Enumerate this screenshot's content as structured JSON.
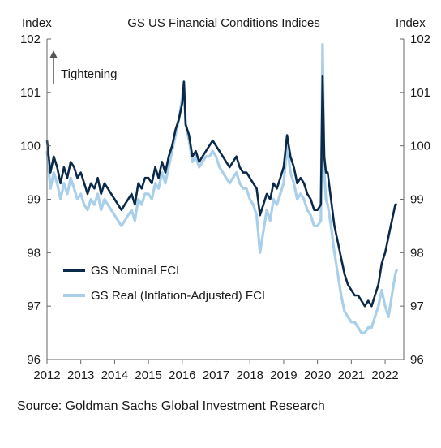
{
  "chart_data": {
    "type": "line",
    "title": "GS US Financial Conditions Indices",
    "ylabel_left": "Index",
    "ylabel_right": "Index",
    "xlim": [
      2012,
      2022.55
    ],
    "ylim": [
      96,
      102
    ],
    "y_ticks": [
      96,
      97,
      98,
      99,
      100,
      101,
      102
    ],
    "x_ticks": [
      2012,
      2013,
      2014,
      2015,
      2016,
      2017,
      2018,
      2019,
      2020,
      2021,
      2022
    ],
    "grid": false,
    "legend_position": "lower-left",
    "annotation": "Tightening",
    "source": "Source: Goldman Sachs Global Investment Research",
    "series": [
      {
        "name": "GS Nominal FCI",
        "color": "#0b2a4a",
        "x": [
          2012.0,
          2012.1,
          2012.2,
          2012.3,
          2012.4,
          2012.5,
          2012.6,
          2012.7,
          2012.8,
          2012.9,
          2013.0,
          2013.1,
          2013.2,
          2013.3,
          2013.4,
          2013.5,
          2013.6,
          2013.7,
          2013.8,
          2013.9,
          2014.0,
          2014.1,
          2014.2,
          2014.3,
          2014.4,
          2014.5,
          2014.6,
          2014.7,
          2014.8,
          2014.9,
          2015.0,
          2015.1,
          2015.2,
          2015.3,
          2015.4,
          2015.5,
          2015.6,
          2015.7,
          2015.8,
          2015.9,
          2016.0,
          2016.05,
          2016.1,
          2016.2,
          2016.3,
          2016.4,
          2016.5,
          2016.6,
          2016.7,
          2016.8,
          2016.9,
          2017.0,
          2017.1,
          2017.2,
          2017.3,
          2017.4,
          2017.5,
          2017.6,
          2017.7,
          2017.8,
          2017.9,
          2018.0,
          2018.1,
          2018.2,
          2018.3,
          2018.4,
          2018.5,
          2018.6,
          2018.7,
          2018.8,
          2018.9,
          2019.0,
          2019.1,
          2019.2,
          2019.3,
          2019.4,
          2019.5,
          2019.6,
          2019.7,
          2019.8,
          2019.9,
          2020.0,
          2020.1,
          2020.15,
          2020.2,
          2020.25,
          2020.3,
          2020.4,
          2020.5,
          2020.6,
          2020.7,
          2020.8,
          2020.9,
          2021.0,
          2021.1,
          2021.2,
          2021.3,
          2021.4,
          2021.5,
          2021.6,
          2021.7,
          2021.8,
          2021.9,
          2022.0,
          2022.1,
          2022.2,
          2022.3,
          2022.35
        ],
        "values": [
          100.1,
          99.5,
          99.8,
          99.6,
          99.3,
          99.6,
          99.4,
          99.7,
          99.6,
          99.4,
          99.5,
          99.3,
          99.1,
          99.3,
          99.2,
          99.4,
          99.1,
          99.3,
          99.2,
          99.1,
          99.0,
          98.9,
          98.8,
          98.9,
          99.0,
          99.1,
          98.9,
          99.3,
          99.2,
          99.4,
          99.4,
          99.3,
          99.6,
          99.4,
          99.7,
          99.5,
          99.8,
          100.0,
          100.3,
          100.5,
          100.8,
          101.2,
          100.4,
          100.2,
          99.8,
          99.9,
          99.7,
          99.8,
          99.9,
          100.0,
          100.1,
          100.0,
          99.9,
          99.8,
          99.7,
          99.6,
          99.7,
          99.8,
          99.6,
          99.5,
          99.5,
          99.4,
          99.3,
          99.2,
          98.7,
          98.9,
          99.1,
          99.0,
          99.3,
          99.2,
          99.4,
          99.6,
          100.2,
          99.8,
          99.6,
          99.3,
          99.4,
          99.3,
          99.1,
          99.0,
          98.8,
          98.8,
          98.9,
          101.3,
          99.8,
          99.5,
          99.5,
          99.0,
          98.5,
          98.2,
          97.9,
          97.6,
          97.4,
          97.3,
          97.2,
          97.2,
          97.1,
          97.0,
          97.1,
          97.0,
          97.2,
          97.4,
          97.8,
          98.0,
          98.3,
          98.6,
          98.9,
          98.9
        ]
      },
      {
        "name": "GS Real (Inflation-Adjusted) FCI",
        "color": "#a9cfea",
        "x": [
          2012.0,
          2012.1,
          2012.2,
          2012.3,
          2012.4,
          2012.5,
          2012.6,
          2012.7,
          2012.8,
          2012.9,
          2013.0,
          2013.1,
          2013.2,
          2013.3,
          2013.4,
          2013.5,
          2013.6,
          2013.7,
          2013.8,
          2013.9,
          2014.0,
          2014.1,
          2014.2,
          2014.3,
          2014.4,
          2014.5,
          2014.6,
          2014.7,
          2014.8,
          2014.9,
          2015.0,
          2015.1,
          2015.2,
          2015.3,
          2015.4,
          2015.5,
          2015.6,
          2015.7,
          2015.8,
          2015.9,
          2016.0,
          2016.05,
          2016.1,
          2016.2,
          2016.3,
          2016.4,
          2016.5,
          2016.6,
          2016.7,
          2016.8,
          2016.9,
          2017.0,
          2017.1,
          2017.2,
          2017.3,
          2017.4,
          2017.5,
          2017.6,
          2017.7,
          2017.8,
          2017.9,
          2018.0,
          2018.1,
          2018.2,
          2018.3,
          2018.4,
          2018.5,
          2018.6,
          2018.7,
          2018.8,
          2018.9,
          2019.0,
          2019.1,
          2019.2,
          2019.3,
          2019.4,
          2019.5,
          2019.6,
          2019.7,
          2019.8,
          2019.9,
          2020.0,
          2020.1,
          2020.15,
          2020.2,
          2020.25,
          2020.3,
          2020.4,
          2020.5,
          2020.6,
          2020.7,
          2020.8,
          2020.9,
          2021.0,
          2021.1,
          2021.2,
          2021.3,
          2021.4,
          2021.5,
          2021.6,
          2021.7,
          2021.8,
          2021.9,
          2022.0,
          2022.1,
          2022.2,
          2022.3,
          2022.35
        ],
        "values": [
          99.9,
          99.2,
          99.5,
          99.3,
          99.0,
          99.3,
          99.1,
          99.4,
          99.2,
          99.0,
          99.1,
          98.9,
          98.8,
          99.0,
          98.9,
          99.1,
          98.8,
          99.0,
          98.9,
          98.8,
          98.7,
          98.6,
          98.5,
          98.6,
          98.7,
          98.8,
          98.6,
          99.0,
          98.9,
          99.1,
          99.1,
          99.0,
          99.3,
          99.2,
          99.5,
          99.3,
          99.6,
          99.9,
          100.2,
          100.5,
          100.9,
          101.2,
          100.4,
          100.1,
          99.7,
          99.8,
          99.6,
          99.7,
          99.8,
          99.8,
          99.9,
          99.8,
          99.6,
          99.5,
          99.4,
          99.3,
          99.4,
          99.5,
          99.3,
          99.2,
          99.2,
          99.0,
          98.9,
          98.7,
          98.0,
          98.4,
          98.8,
          98.6,
          99.0,
          98.9,
          99.1,
          99.3,
          100.0,
          99.5,
          99.3,
          99.0,
          99.1,
          99.0,
          98.8,
          98.7,
          98.5,
          98.5,
          98.6,
          101.9,
          99.5,
          99.0,
          98.9,
          98.5,
          98.0,
          97.6,
          97.2,
          96.9,
          96.8,
          96.7,
          96.7,
          96.6,
          96.5,
          96.5,
          96.6,
          96.6,
          96.8,
          97.0,
          97.3,
          97.0,
          96.8,
          97.2,
          97.6,
          97.7
        ]
      }
    ]
  }
}
